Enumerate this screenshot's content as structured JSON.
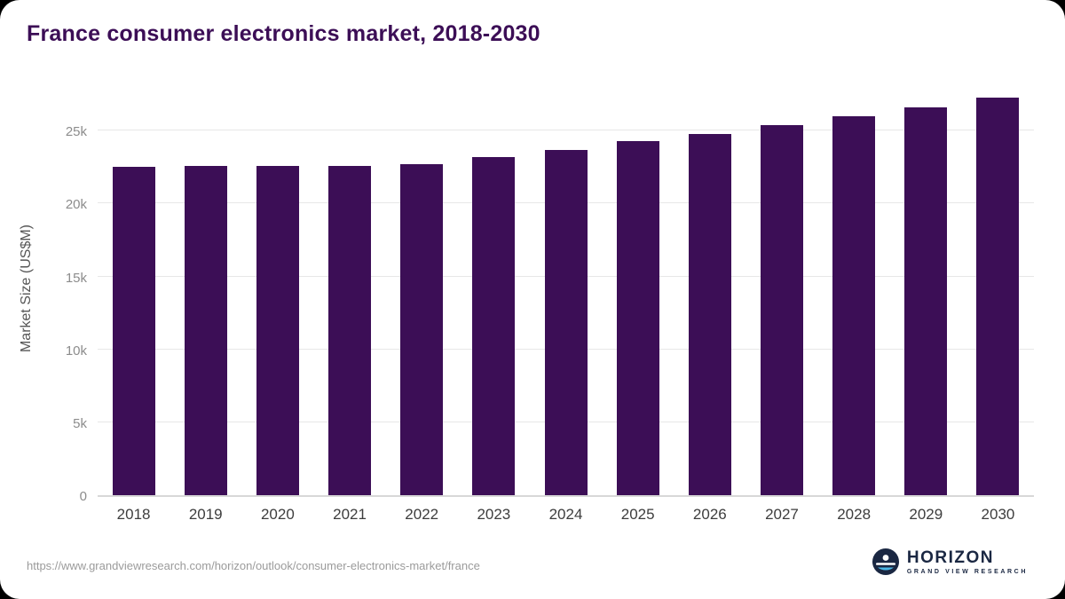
{
  "title": "France consumer electronics market, 2018-2030",
  "source_url": "https://www.grandviewresearch.com/horizon/outlook/consumer-electronics-market/france",
  "logo": {
    "name": "HORIZON",
    "subtitle": "GRAND VIEW RESEARCH",
    "icon": "horizon-sun-icon"
  },
  "colors": {
    "bar": "#3c0e56",
    "title": "#3c0e56",
    "grid": "#e7e7e7",
    "axis_text": "#8c8c8c",
    "logo_navy": "#1a2742"
  },
  "chart_data": {
    "type": "bar",
    "title": "France consumer electronics market, 2018-2030",
    "xlabel": "",
    "ylabel": "Market Size (US$M)",
    "categories": [
      "2018",
      "2019",
      "2020",
      "2021",
      "2022",
      "2023",
      "2024",
      "2025",
      "2026",
      "2027",
      "2028",
      "2029",
      "2030"
    ],
    "values": [
      22500,
      22600,
      22600,
      22600,
      22700,
      23200,
      23700,
      24300,
      24800,
      25400,
      26000,
      26600,
      27300
    ],
    "ylim": [
      0,
      28000
    ],
    "yticks": [
      0,
      5000,
      10000,
      15000,
      20000,
      25000
    ],
    "ytick_labels": [
      "0",
      "5k",
      "10k",
      "15k",
      "20k",
      "25k"
    ],
    "grid": true,
    "legend": "none",
    "bar_color": "#3c0e56"
  }
}
